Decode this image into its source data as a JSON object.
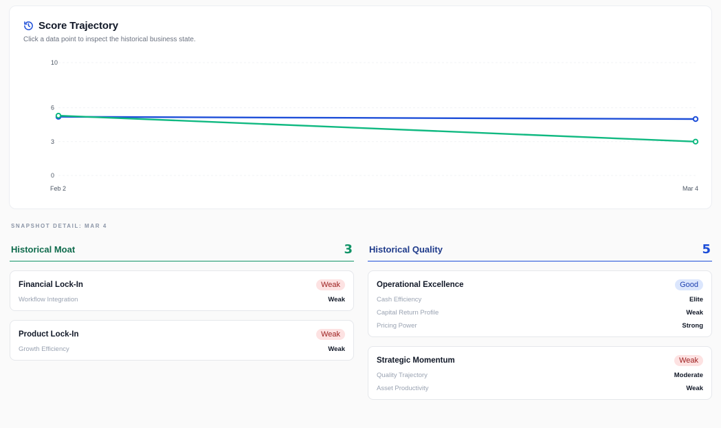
{
  "chart": {
    "title": "Score Trajectory",
    "subtitle": "Click a data point to inspect the historical business state.",
    "icon": "history-icon"
  },
  "chart_data": {
    "type": "line",
    "x": [
      "Feb 2",
      "Mar 4"
    ],
    "ylim": [
      0,
      10
    ],
    "yticks": [
      0,
      3,
      6,
      10
    ],
    "series": [
      {
        "values": [
          5.2,
          5.0
        ],
        "color": "#1d4ed8"
      },
      {
        "values": [
          5.3,
          3.0
        ],
        "color": "#10b981"
      }
    ],
    "grid": true
  },
  "snapshot": {
    "label": "SNAPSHOT DETAIL: MAR 4"
  },
  "moat": {
    "title": "Historical Moat",
    "score": "3",
    "color": "#0f6b4c",
    "score_color": "#129468",
    "cards": [
      {
        "title": "Financial Lock-In",
        "badge": "Weak",
        "metrics": [
          {
            "name": "Workflow Integration",
            "value": "Weak"
          }
        ]
      },
      {
        "title": "Product Lock-In",
        "badge": "Weak",
        "metrics": [
          {
            "name": "Growth Efficiency",
            "value": "Weak"
          }
        ]
      }
    ]
  },
  "quality": {
    "title": "Historical Quality",
    "score": "5",
    "color": "#1e3a8a",
    "score_color": "#1d4ed8",
    "cards": [
      {
        "title": "Operational Excellence",
        "badge": "Good",
        "metrics": [
          {
            "name": "Cash Efficiency",
            "value": "Elite"
          },
          {
            "name": "Capital Return Profile",
            "value": "Weak"
          },
          {
            "name": "Pricing Power",
            "value": "Strong"
          }
        ]
      },
      {
        "title": "Strategic Momentum",
        "badge": "Weak",
        "metrics": [
          {
            "name": "Quality Trajectory",
            "value": "Moderate"
          },
          {
            "name": "Asset Productivity",
            "value": "Weak"
          }
        ]
      }
    ]
  }
}
